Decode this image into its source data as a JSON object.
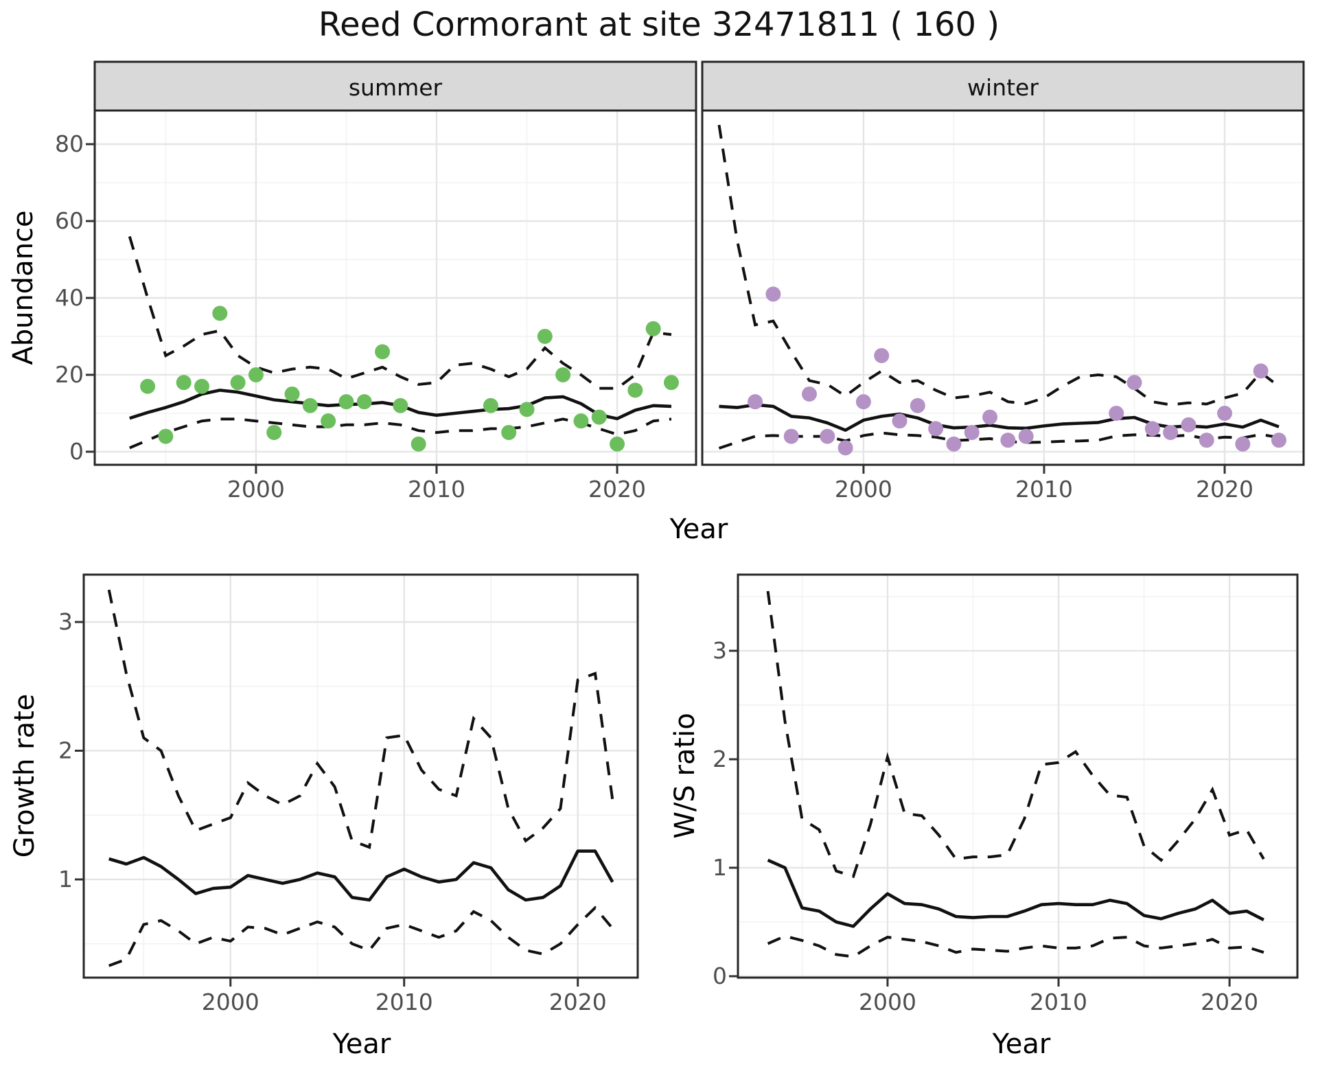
{
  "title": "Reed Cormorant at site 32471811 ( 160 )",
  "facets": {
    "summer_label": "summer",
    "winter_label": "winter"
  },
  "axis_titles": {
    "x_top": "Year",
    "y_top": "Abundance",
    "x_bottom_left": "Year",
    "y_bottom_left": "Growth rate",
    "x_bottom_right": "Year",
    "y_bottom_right": "W/S ratio"
  },
  "colors": {
    "summer_point": "#6cbe5c",
    "winter_point": "#b592c6",
    "line": "#111111",
    "grid_major": "#e5e5e5",
    "grid_minor": "#f2f2f2",
    "strip_bg": "#d9d9d9",
    "panel_border": "#262626",
    "tick_text": "#4d4d4d"
  },
  "chart_data": [
    {
      "type": "scatter",
      "panel": "summer",
      "title": "summer",
      "xlabel": "Year",
      "ylabel": "Abundance",
      "x_major": [
        2000,
        2010,
        2020
      ],
      "x_minor": [
        1995,
        2005,
        2015
      ],
      "y_major": [
        0,
        20,
        40,
        60,
        80
      ],
      "y_minor": [
        10,
        30,
        50,
        70
      ],
      "xlim": [
        1991.07,
        2024.37
      ],
      "ylim": [
        -3.4,
        88.75
      ],
      "show_x_labels": true,
      "show_y_labels": true,
      "points": {
        "years": [
          1994,
          1995,
          1996,
          1997,
          1998,
          1999,
          2000,
          2001,
          2002,
          2003,
          2004,
          2005,
          2006,
          2007,
          2008,
          2009,
          2013,
          2014,
          2015,
          2016,
          2017,
          2018,
          2019,
          2020,
          2021,
          2022,
          2023
        ],
        "values": [
          17,
          4,
          18,
          17,
          36,
          18,
          20,
          5,
          15,
          12,
          8,
          13,
          13,
          26,
          12,
          2,
          12,
          5,
          11,
          30,
          20,
          8,
          9,
          2,
          16,
          32,
          18
        ]
      },
      "fit": {
        "years": [
          1993,
          1994,
          1995,
          1996,
          1997,
          1998,
          1999,
          2000,
          2001,
          2002,
          2003,
          2004,
          2005,
          2006,
          2007,
          2008,
          2009,
          2010,
          2011,
          2012,
          2013,
          2014,
          2015,
          2016,
          2017,
          2018,
          2019,
          2020,
          2021,
          2022,
          2023
        ],
        "values": [
          8.7,
          10.2,
          11.5,
          13,
          15,
          16,
          15.5,
          14.5,
          13.5,
          13,
          12.5,
          12,
          12.3,
          12.4,
          12.8,
          12,
          10.2,
          9.5,
          10,
          10.5,
          11,
          11.2,
          12,
          14,
          14.3,
          12.5,
          9.6,
          8.6,
          10.8,
          12,
          11.8
        ],
        "upper": [
          56,
          40,
          25,
          27.5,
          30.5,
          31.5,
          25,
          22,
          20.5,
          21.5,
          22,
          21.5,
          19,
          20.5,
          22,
          19.5,
          17.5,
          18,
          22.5,
          23,
          21.5,
          19.5,
          21.5,
          27,
          23,
          20,
          16.5,
          16.5,
          20,
          31,
          30.5
        ],
        "lower": [
          1,
          3,
          5,
          6.5,
          8,
          8.5,
          8.5,
          8,
          7.5,
          7,
          6.5,
          6.5,
          7,
          7,
          7.5,
          7,
          5.5,
          5,
          5.5,
          5.5,
          6,
          6,
          6.5,
          7.5,
          8.5,
          7.5,
          6,
          4.5,
          5.5,
          8,
          8.5
        ]
      }
    },
    {
      "type": "scatter",
      "panel": "winter",
      "title": "winter",
      "xlabel": "Year",
      "ylabel": "Abundance",
      "x_major": [
        2000,
        2010,
        2020
      ],
      "x_minor": [
        1995,
        2005,
        2015
      ],
      "y_major": [
        0,
        20,
        40,
        60,
        80
      ],
      "y_minor": [
        10,
        30,
        50,
        70
      ],
      "xlim": [
        1991.07,
        2024.37
      ],
      "ylim": [
        -3.4,
        88.75
      ],
      "show_x_labels": true,
      "show_y_labels": false,
      "points": {
        "years": [
          1994,
          1995,
          1996,
          1997,
          1998,
          1999,
          2000,
          2001,
          2002,
          2003,
          2004,
          2005,
          2006,
          2007,
          2008,
          2009,
          2014,
          2015,
          2016,
          2017,
          2018,
          2019,
          2020,
          2021,
          2022,
          2023
        ],
        "values": [
          13,
          41,
          4,
          15,
          4,
          1,
          13,
          25,
          8,
          12,
          6,
          2,
          5,
          9,
          3,
          4,
          10,
          18,
          6,
          5,
          7,
          3,
          10,
          2,
          21,
          3
        ]
      },
      "fit": {
        "years": [
          1992,
          1993,
          1994,
          1995,
          1996,
          1997,
          1998,
          1999,
          2000,
          2001,
          2002,
          2003,
          2004,
          2005,
          2006,
          2007,
          2008,
          2009,
          2010,
          2011,
          2012,
          2013,
          2014,
          2015,
          2016,
          2017,
          2018,
          2019,
          2020,
          2021,
          2022,
          2023
        ],
        "values": [
          11.8,
          11.5,
          12.2,
          11.8,
          9.2,
          8.8,
          7.5,
          5.6,
          8.2,
          9.2,
          9.8,
          8.8,
          7.0,
          6.2,
          6.4,
          6.9,
          6.2,
          6.1,
          6.7,
          7.2,
          7.4,
          7.6,
          8.6,
          8.9,
          7.2,
          6.4,
          6.7,
          6.4,
          7.2,
          6.4,
          8.2,
          6.5
        ],
        "upper": [
          85,
          55,
          33,
          34,
          26,
          18.5,
          17.5,
          14.5,
          18,
          21,
          18,
          18.5,
          16,
          14,
          14.5,
          15.5,
          13,
          12.5,
          14,
          17,
          19.5,
          20,
          19.5,
          16.5,
          13,
          12.2,
          12.7,
          12.4,
          14,
          15.2,
          20.6,
          17
        ],
        "lower": [
          0.9,
          2.5,
          4.0,
          4.2,
          4.0,
          4.0,
          4.0,
          2.8,
          4.2,
          4.9,
          4.4,
          4.2,
          3.8,
          2.9,
          3.1,
          3.4,
          2.6,
          2.4,
          2.5,
          2.7,
          2.8,
          3.0,
          4.1,
          4.4,
          4.3,
          4.0,
          4.3,
          3.3,
          3.8,
          3.6,
          4.5,
          3.7
        ]
      }
    },
    {
      "type": "line",
      "panel": "growth",
      "title": "Growth rate",
      "xlabel": "Year",
      "ylabel": "Growth rate",
      "x_major": [
        2000,
        2010,
        2020
      ],
      "x_minor": [
        1995,
        2005,
        2015
      ],
      "y_major": [
        1,
        2,
        3
      ],
      "y_minor": [
        0.5,
        1.5,
        2.5
      ],
      "xlim": [
        1991.55,
        2023.45
      ],
      "ylim": [
        0.237,
        3.368
      ],
      "show_x_labels": true,
      "show_y_labels": true,
      "fit": {
        "years": [
          1993,
          1994,
          1995,
          1996,
          1997,
          1998,
          1999,
          2000,
          2001,
          2002,
          2003,
          2004,
          2005,
          2006,
          2007,
          2008,
          2009,
          2010,
          2011,
          2012,
          2013,
          2014,
          2015,
          2016,
          2017,
          2018,
          2019,
          2020,
          2021,
          2022
        ],
        "values": [
          1.16,
          1.12,
          1.17,
          1.1,
          1.0,
          0.89,
          0.93,
          0.94,
          1.03,
          1.0,
          0.97,
          1.0,
          1.05,
          1.02,
          0.86,
          0.84,
          1.02,
          1.08,
          1.02,
          0.98,
          1.0,
          1.13,
          1.09,
          0.92,
          0.84,
          0.86,
          0.95,
          1.22,
          1.22,
          0.98
        ],
        "upper": [
          3.25,
          2.6,
          2.1,
          2.0,
          1.65,
          1.38,
          1.43,
          1.48,
          1.75,
          1.65,
          1.58,
          1.65,
          1.9,
          1.72,
          1.3,
          1.25,
          2.1,
          2.12,
          1.85,
          1.7,
          1.65,
          2.25,
          2.1,
          1.55,
          1.3,
          1.4,
          1.55,
          2.55,
          2.6,
          1.62
        ],
        "lower": [
          0.33,
          0.38,
          0.65,
          0.68,
          0.6,
          0.5,
          0.55,
          0.52,
          0.63,
          0.62,
          0.57,
          0.62,
          0.67,
          0.63,
          0.5,
          0.45,
          0.62,
          0.65,
          0.6,
          0.55,
          0.6,
          0.75,
          0.68,
          0.55,
          0.45,
          0.42,
          0.5,
          0.65,
          0.78,
          0.62
        ]
      }
    },
    {
      "type": "line",
      "panel": "ws",
      "title": "W/S ratio",
      "xlabel": "Year",
      "ylabel": "W/S ratio",
      "x_major": [
        2000,
        2010,
        2020
      ],
      "x_minor": [
        1995,
        2005,
        2015
      ],
      "y_major": [
        0,
        1,
        2,
        3
      ],
      "y_minor": [
        0.5,
        1.5,
        2.5,
        3.5
      ],
      "xlim": [
        1991.25,
        2023.97
      ],
      "ylim": [
        -0.013,
        3.702
      ],
      "show_x_labels": true,
      "show_y_labels": true,
      "fit": {
        "years": [
          1993,
          1994,
          1995,
          1996,
          1997,
          1998,
          1999,
          2000,
          2001,
          2002,
          2003,
          2004,
          2005,
          2006,
          2007,
          2008,
          2009,
          2010,
          2011,
          2012,
          2013,
          2014,
          2015,
          2016,
          2017,
          2018,
          2019,
          2020,
          2021,
          2022
        ],
        "values": [
          1.07,
          1.0,
          0.63,
          0.6,
          0.5,
          0.46,
          0.62,
          0.76,
          0.67,
          0.66,
          0.62,
          0.55,
          0.54,
          0.55,
          0.55,
          0.6,
          0.66,
          0.67,
          0.66,
          0.66,
          0.7,
          0.67,
          0.56,
          0.53,
          0.58,
          0.62,
          0.7,
          0.58,
          0.6,
          0.52
        ],
        "upper": [
          3.55,
          2.35,
          1.45,
          1.35,
          0.97,
          0.92,
          1.4,
          2.02,
          1.5,
          1.48,
          1.3,
          1.08,
          1.1,
          1.1,
          1.12,
          1.45,
          1.95,
          1.97,
          2.07,
          1.85,
          1.67,
          1.65,
          1.2,
          1.07,
          1.25,
          1.45,
          1.72,
          1.3,
          1.35,
          1.08
        ],
        "lower": [
          0.3,
          0.37,
          0.33,
          0.28,
          0.2,
          0.18,
          0.28,
          0.36,
          0.34,
          0.32,
          0.28,
          0.22,
          0.25,
          0.24,
          0.23,
          0.26,
          0.28,
          0.26,
          0.26,
          0.28,
          0.35,
          0.36,
          0.28,
          0.26,
          0.28,
          0.3,
          0.34,
          0.26,
          0.27,
          0.22
        ]
      }
    }
  ]
}
